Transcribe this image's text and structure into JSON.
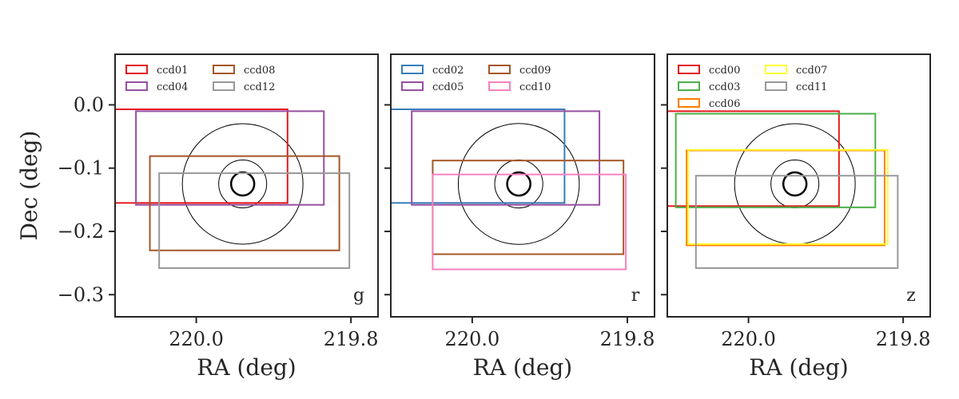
{
  "chart_data": [
    {
      "type": "rectangles",
      "panel_label": "g",
      "xlabel": "RA (deg)",
      "ylabel": "Dec (deg)",
      "xlim": [
        220.105,
        219.765
      ],
      "ylim": [
        -0.335,
        0.08
      ],
      "xticks": [
        220.0,
        219.8
      ],
      "xtick_labels": [
        "220.0",
        "219.8"
      ],
      "yticks": [
        0.0,
        -0.1,
        -0.2,
        -0.3
      ],
      "ytick_labels": [
        "0.0",
        "−0.1",
        "−0.2",
        "−0.3"
      ],
      "legend_position": "top-left",
      "legend_columns": 2,
      "circles": {
        "ra": 219.94,
        "dec": -0.125,
        "radii": [
          0.078,
          0.031,
          0.015
        ],
        "linewidths": [
          1,
          1,
          2.5
        ]
      },
      "series": [
        {
          "name": "ccd01",
          "color": "#e41a1c",
          "ra": [
            220.105,
            219.882
          ],
          "dec": [
            -0.155,
            -0.007
          ]
        },
        {
          "name": "ccd04",
          "color": "#984ea3",
          "ra": [
            220.078,
            219.835
          ],
          "dec": [
            -0.158,
            -0.01
          ]
        },
        {
          "name": "ccd08",
          "color": "#a65628",
          "ra": [
            220.06,
            219.815
          ],
          "dec": [
            -0.23,
            -0.081
          ]
        },
        {
          "name": "ccd12",
          "color": "#999999",
          "ra": [
            220.048,
            219.802
          ],
          "dec": [
            -0.258,
            -0.108
          ]
        }
      ]
    },
    {
      "type": "rectangles",
      "panel_label": "r",
      "xlabel": "RA (deg)",
      "ylabel": "",
      "xlim": [
        220.105,
        219.765
      ],
      "ylim": [
        -0.335,
        0.08
      ],
      "xticks": [
        220.0,
        219.8
      ],
      "xtick_labels": [
        "220.0",
        "219.8"
      ],
      "yticks": [
        0.0,
        -0.1,
        -0.2,
        -0.3
      ],
      "ytick_labels": [],
      "legend_position": "top-left",
      "legend_columns": 2,
      "circles": {
        "ra": 219.94,
        "dec": -0.125,
        "radii": [
          0.078,
          0.031,
          0.015
        ],
        "linewidths": [
          1,
          1,
          2.5
        ]
      },
      "series": [
        {
          "name": "ccd02",
          "color": "#377eb8",
          "ra": [
            220.105,
            219.881
          ],
          "dec": [
            -0.155,
            -0.007
          ]
        },
        {
          "name": "ccd05",
          "color": "#984ea3",
          "ra": [
            220.078,
            219.836
          ],
          "dec": [
            -0.158,
            -0.01
          ]
        },
        {
          "name": "ccd09",
          "color": "#a65628",
          "ra": [
            220.051,
            219.805
          ],
          "dec": [
            -0.236,
            -0.088
          ]
        },
        {
          "name": "ccd10",
          "color": "#f781bf",
          "ra": [
            220.051,
            219.802
          ],
          "dec": [
            -0.26,
            -0.11
          ]
        }
      ]
    },
    {
      "type": "rectangles",
      "panel_label": "z",
      "xlabel": "RA (deg)",
      "ylabel": "",
      "xlim": [
        220.105,
        219.765
      ],
      "ylim": [
        -0.335,
        0.08
      ],
      "xticks": [
        220.0,
        219.8
      ],
      "xtick_labels": [
        "220.0",
        "219.8"
      ],
      "yticks": [
        0.0,
        -0.1,
        -0.2,
        -0.3
      ],
      "ytick_labels": [],
      "legend_position": "top-left",
      "legend_columns": 2,
      "circles": {
        "ra": 219.94,
        "dec": -0.125,
        "radii": [
          0.078,
          0.031,
          0.015
        ],
        "linewidths": [
          1,
          1,
          2.5
        ]
      },
      "series": [
        {
          "name": "ccd00",
          "color": "#e41a1c",
          "ra": [
            220.105,
            219.883
          ],
          "dec": [
            -0.16,
            -0.01
          ]
        },
        {
          "name": "ccd03",
          "color": "#4daf4a",
          "ra": [
            220.094,
            219.836
          ],
          "dec": [
            -0.162,
            -0.014
          ]
        },
        {
          "name": "ccd06",
          "color": "#ff7f00",
          "ra": [
            220.08,
            219.824
          ],
          "dec": [
            -0.222,
            -0.072
          ]
        },
        {
          "name": "ccd07",
          "color": "#ffff33",
          "ra": [
            220.078,
            219.82
          ],
          "dec": [
            -0.22,
            -0.071
          ]
        },
        {
          "name": "ccd11",
          "color": "#999999",
          "ra": [
            220.068,
            219.807
          ],
          "dec": [
            -0.258,
            -0.112
          ]
        }
      ]
    }
  ]
}
